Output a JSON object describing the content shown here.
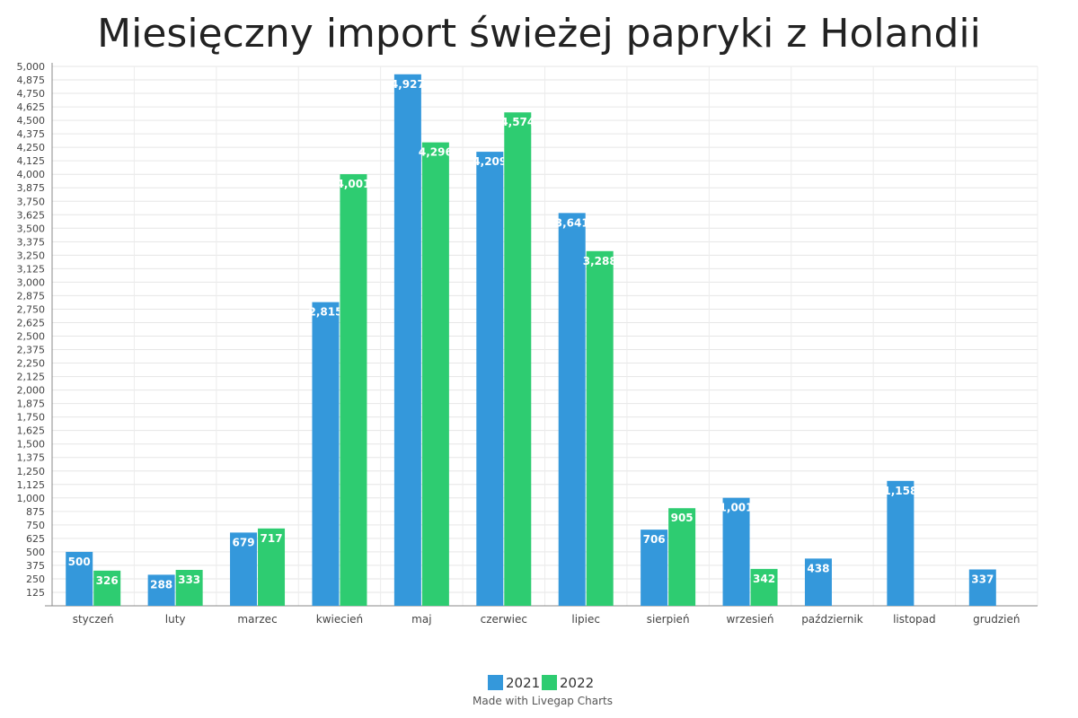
{
  "chart_data": {
    "type": "bar",
    "title": "Miesięczny import świeżej papryki z Holandii",
    "xlabel": "",
    "ylabel": "",
    "ylim": [
      0,
      5000
    ],
    "ytick_step": 125,
    "ytick_labels": [
      "125",
      "250",
      "375",
      "500",
      "625",
      "750",
      "875",
      "1,000",
      "1,125",
      "1,250",
      "1,375",
      "1,500",
      "1,625",
      "1,750",
      "1,875",
      "2,000",
      "2,125",
      "2,250",
      "2,375",
      "2,500",
      "2,625",
      "2,750",
      "2,875",
      "3,000",
      "3,125",
      "3,250",
      "3,375",
      "3,500",
      "3,625",
      "3,750",
      "3,875",
      "4,000",
      "4,125",
      "4,250",
      "4,375",
      "4,500",
      "4,625",
      "4,750",
      "4,875",
      "5,000"
    ],
    "categories": [
      "styczeń",
      "luty",
      "marzec",
      "kwiecień",
      "maj",
      "czerwiec",
      "lipiec",
      "sierpień",
      "wrzesień",
      "październik",
      "listopad",
      "grudzień"
    ],
    "series": [
      {
        "name": "2021",
        "color": "#3498db",
        "values": [
          500,
          288,
          679,
          2815,
          4927,
          4209,
          3641,
          706,
          1001,
          438,
          1158,
          337
        ],
        "labels": [
          "500",
          "288",
          "679",
          "2,815",
          "4,927",
          "4,209",
          "3,641",
          "706",
          "1,001",
          "438",
          "1,158",
          "337"
        ]
      },
      {
        "name": "2022",
        "color": "#2ecc71",
        "values": [
          326,
          333,
          717,
          4001,
          4296,
          4574,
          3288,
          905,
          342,
          null,
          null,
          null
        ],
        "labels": [
          "326",
          "333",
          "717",
          "4,001",
          "4,296",
          "4,574",
          "3,288",
          "905",
          "342",
          null,
          null,
          null
        ]
      }
    ],
    "legend_position": "bottom-center",
    "grid": true
  },
  "credit": "Made with Livegap Charts"
}
